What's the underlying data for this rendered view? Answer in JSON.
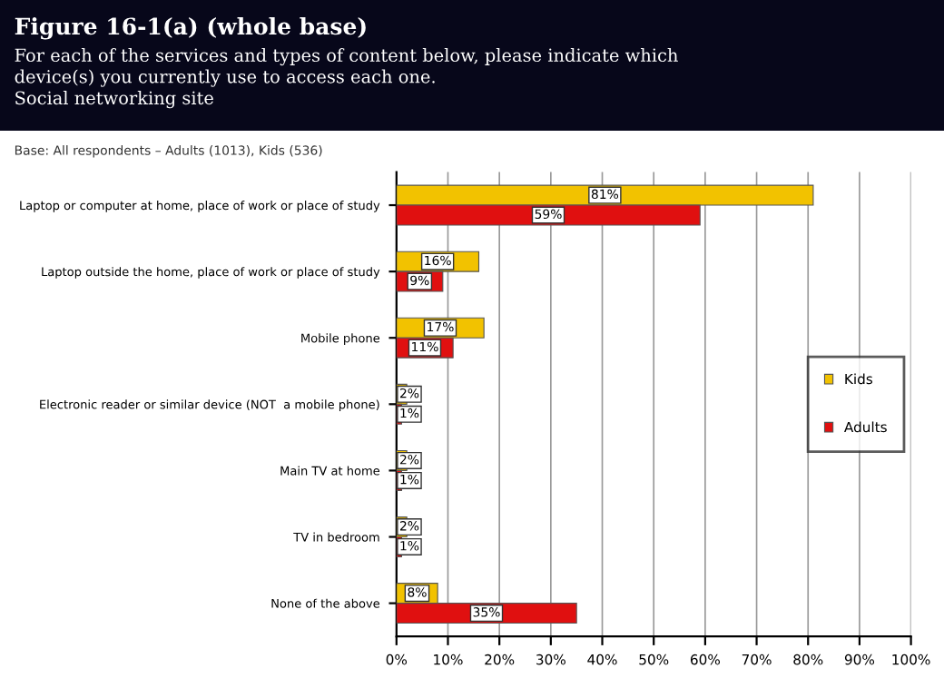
{
  "chart_data": {
    "type": "bar",
    "orientation": "horizontal",
    "title": "Figure 16-1(a) (whole base)",
    "subtitle": "For each of the services and types of content below, please indicate which\ndevice(s) you currently use to access each one.\nSocial networking site",
    "annotations": [
      "Base: All respondents – Adults (1013), Kids (536)"
    ],
    "categories": [
      "Laptop or computer at home, place of work or place of study",
      "Laptop outside the home, place of work or place of study",
      "Mobile phone",
      "Electronic reader or similar device (NOT  a mobile phone)",
      "Main TV at home",
      "TV in bedroom",
      "None of the above"
    ],
    "series": [
      {
        "name": "Kids",
        "color": "#f2c200",
        "values": [
          81,
          16,
          17,
          2,
          2,
          2,
          8
        ],
        "value_labels": [
          "81%",
          "16%",
          "17%",
          "2%",
          "2%",
          "2%",
          "8%"
        ]
      },
      {
        "name": "Adults",
        "color": "#e01010",
        "values": [
          59,
          9,
          11,
          1,
          1,
          1,
          35
        ],
        "value_labels": [
          "59%",
          "9%",
          "11%",
          "1%",
          "1%",
          "1%",
          "35%"
        ]
      }
    ],
    "xlim": [
      0,
      100
    ],
    "xticks": [
      {
        "value": 0,
        "label": "0%"
      },
      {
        "value": 10,
        "label": "10%"
      },
      {
        "value": 20,
        "label": "20%"
      },
      {
        "value": 30,
        "label": "30%"
      },
      {
        "value": 40,
        "label": "40%"
      },
      {
        "value": 50,
        "label": "50%"
      },
      {
        "value": 60,
        "label": "60%"
      },
      {
        "value": 70,
        "label": "70%"
      },
      {
        "value": 80,
        "label": "80%"
      },
      {
        "value": 90,
        "label": "90%"
      },
      {
        "value": 100,
        "label": "100%"
      }
    ],
    "grid": "x",
    "legend": "right"
  }
}
